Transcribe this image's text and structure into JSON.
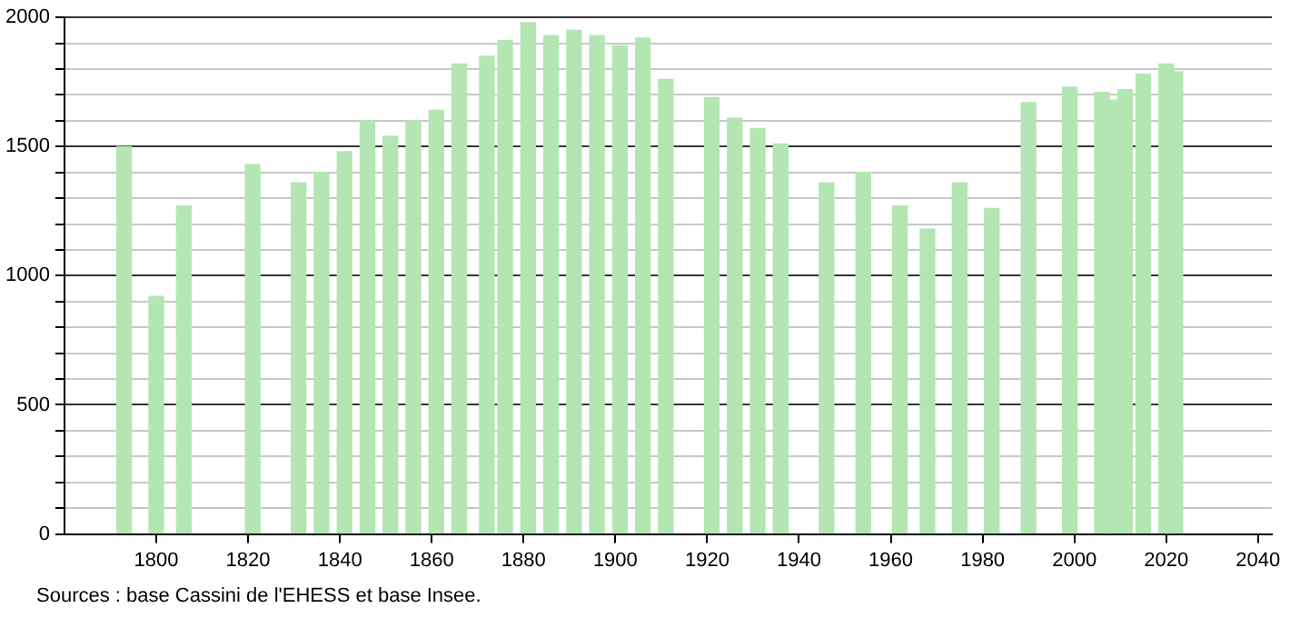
{
  "chart_data": {
    "type": "bar",
    "color": "#b3e6b3",
    "x": [
      1793,
      1800,
      1806,
      1821,
      1831,
      1836,
      1841,
      1846,
      1851,
      1856,
      1861,
      1866,
      1872,
      1876,
      1881,
      1886,
      1891,
      1896,
      1901,
      1906,
      1911,
      1921,
      1926,
      1931,
      1936,
      1946,
      1954,
      1962,
      1968,
      1975,
      1982,
      1990,
      1999,
      2006,
      2008,
      2011,
      2015,
      2020,
      2022
    ],
    "values": [
      1500,
      920,
      1270,
      1430,
      1360,
      1400,
      1480,
      1600,
      1540,
      1600,
      1640,
      1820,
      1850,
      1910,
      1980,
      1930,
      1950,
      1930,
      1890,
      1920,
      1760,
      1690,
      1610,
      1570,
      1510,
      1360,
      1400,
      1270,
      1180,
      1360,
      1260,
      1670,
      1730,
      1710,
      1680,
      1720,
      1780,
      1820,
      1790
    ],
    "xlim": [
      1780,
      2043
    ],
    "xticks": [
      1800,
      1820,
      1840,
      1860,
      1880,
      1900,
      1920,
      1940,
      1960,
      1980,
      2000,
      2020,
      2040
    ],
    "ylim": [
      0,
      2000
    ],
    "yticks": [
      0,
      {
        "value": 100,
        "label": null
      },
      {
        "value": 200,
        "label": null
      },
      {
        "value": 300,
        "label": null
      },
      {
        "value": 400,
        "label": null
      },
      500,
      {
        "value": 600,
        "label": null
      },
      {
        "value": 700,
        "label": null
      },
      {
        "value": 800,
        "label": null
      },
      {
        "value": 900,
        "label": null
      },
      1000,
      {
        "value": 1100,
        "label": null
      },
      {
        "value": 1200,
        "label": null
      },
      {
        "value": 1300,
        "label": null
      },
      {
        "value": 1400,
        "label": null
      },
      1500,
      {
        "value": 1600,
        "label": null
      },
      {
        "value": 1700,
        "label": null
      },
      {
        "value": 1800,
        "label": null
      },
      {
        "value": 1900,
        "label": null
      },
      2000
    ],
    "grid": "y",
    "legend": false,
    "annotations": [
      "Sources : base Cassini de l'EHESS et base Insee."
    ]
  }
}
